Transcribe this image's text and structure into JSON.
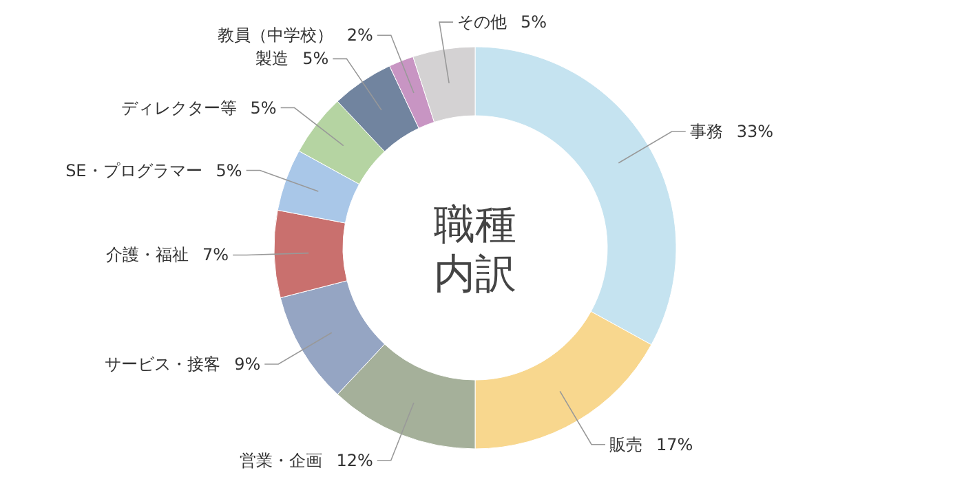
{
  "chart_data": {
    "type": "donut",
    "title": "職種内訳",
    "categories": [
      "事務",
      "販売",
      "営業・企画",
      "サービス・接客",
      "介護・福祉",
      "SE・プログラマー",
      "ディレクター等",
      "製造",
      "教員（中学校）",
      "その他"
    ],
    "values": [
      33,
      17,
      12,
      9,
      7,
      5,
      5,
      5,
      2,
      5
    ],
    "value_labels": [
      "33%",
      "17%",
      "12%",
      "9%",
      "7%",
      "5%",
      "5%",
      "5%",
      "2%",
      "5%"
    ],
    "colors": [
      "#c5e3f0",
      "#f8d78e",
      "#a5b09a",
      "#95a5c3",
      "#c9706e",
      "#a9c7e8",
      "#b5d4a2",
      "#71849f",
      "#c895c3",
      "#d4d2d3"
    ]
  }
}
